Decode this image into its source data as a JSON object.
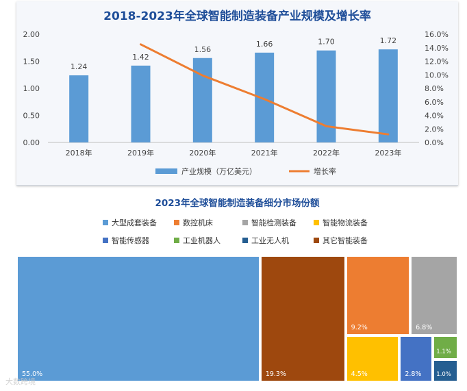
{
  "chart_data": [
    {
      "type": "bar+line",
      "title": "2018-2023年全球智能制造装备产业规模及增长率",
      "categories": [
        "2018年",
        "2019年",
        "2020年",
        "2021年",
        "2022年",
        "2023年"
      ],
      "series": [
        {
          "name": "产业规模（万亿美元）",
          "type": "bar",
          "axis": "left",
          "values": [
            1.24,
            1.42,
            1.56,
            1.66,
            1.7,
            1.72
          ]
        },
        {
          "name": "增长率",
          "type": "line",
          "axis": "right",
          "values": [
            null,
            14.5,
            9.9,
            6.4,
            2.4,
            1.2
          ]
        }
      ],
      "data_labels": [
        "1.24",
        "1.42",
        "1.56",
        "1.66",
        "1.70",
        "1.72"
      ],
      "ylim_left": [
        0,
        2.0
      ],
      "ylim_right": [
        0,
        16.0
      ],
      "left_ticks": [
        "0.00",
        "0.50",
        "1.00",
        "1.50",
        "2.00"
      ],
      "right_ticks": [
        "0.0%",
        "2.0%",
        "4.0%",
        "6.0%",
        "8.0%",
        "10.0%",
        "12.0%",
        "14.0%",
        "16.0%"
      ],
      "legend": [
        "产业规模（万亿美元）",
        "增长率"
      ],
      "colors": {
        "bar": "#5b9bd5",
        "line": "#ed7d31"
      }
    },
    {
      "type": "treemap",
      "title": "2023年全球智能制造装备细分市场份额",
      "segments": [
        {
          "name": "大型成套装备",
          "value": 55.0,
          "label": "55.0%",
          "color": "#5b9bd5"
        },
        {
          "name": "其它智能装备",
          "value": 19.3,
          "label": "19.3%",
          "color": "#9e480e"
        },
        {
          "name": "数控机床",
          "value": 9.2,
          "label": "9.2%",
          "color": "#ed7d31"
        },
        {
          "name": "智能检测装备",
          "value": 6.8,
          "label": "6.8%",
          "color": "#a5a5a5"
        },
        {
          "name": "智能物流装备",
          "value": 4.5,
          "label": "4.5%",
          "color": "#ffc000"
        },
        {
          "name": "智能传感器",
          "value": 2.8,
          "label": "2.8%",
          "color": "#4472c4"
        },
        {
          "name": "工业机器人",
          "value": 1.1,
          "label": "1.1%",
          "color": "#70ad47"
        },
        {
          "name": "工业无人机",
          "value": 1.0,
          "label": "1.0%",
          "color": "#255e91"
        }
      ],
      "legend": [
        "大型成套装备",
        "数控机床",
        "智能检测装备",
        "智能物流装备",
        "智能传感器",
        "工业机器人",
        "工业无人机",
        "其它智能装备"
      ]
    }
  ],
  "watermark": "大数跨境"
}
